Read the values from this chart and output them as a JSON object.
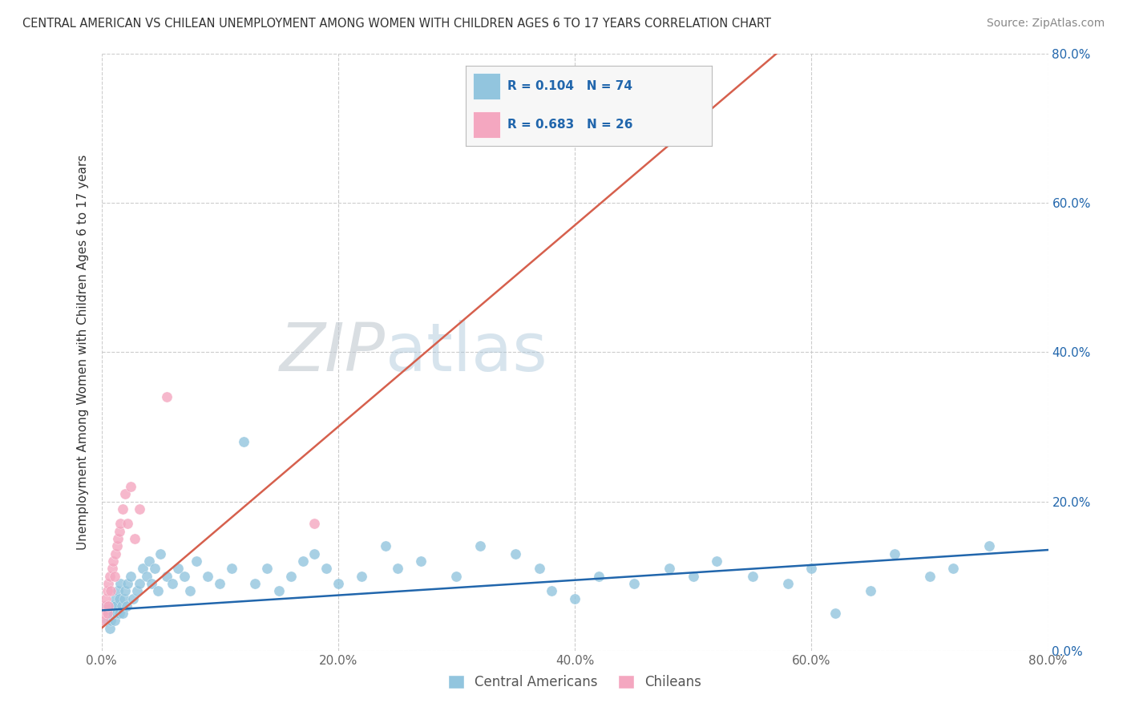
{
  "title": "CENTRAL AMERICAN VS CHILEAN UNEMPLOYMENT AMONG WOMEN WITH CHILDREN AGES 6 TO 17 YEARS CORRELATION CHART",
  "source": "Source: ZipAtlas.com",
  "ylabel": "Unemployment Among Women with Children Ages 6 to 17 years",
  "xlim": [
    0.0,
    0.8
  ],
  "ylim": [
    0.0,
    0.8
  ],
  "xticks": [
    0.0,
    0.2,
    0.4,
    0.6,
    0.8
  ],
  "yticks": [
    0.0,
    0.2,
    0.4,
    0.6,
    0.8
  ],
  "xticklabels": [
    "0.0%",
    "20.0%",
    "40.0%",
    "60.0%",
    "80.0%"
  ],
  "yticklabels": [
    "0.0%",
    "20.0%",
    "40.0%",
    "60.0%",
    "80.0%"
  ],
  "background_color": "#ffffff",
  "grid_color": "#cccccc",
  "blue_color": "#92c5de",
  "pink_color": "#f4a7c0",
  "blue_line_color": "#2166ac",
  "pink_line_color": "#d6604d",
  "label_color": "#2166ac",
  "ca_x": [
    0.003,
    0.005,
    0.006,
    0.007,
    0.008,
    0.009,
    0.01,
    0.011,
    0.012,
    0.012,
    0.013,
    0.014,
    0.015,
    0.015,
    0.016,
    0.017,
    0.018,
    0.019,
    0.02,
    0.021,
    0.022,
    0.025,
    0.027,
    0.03,
    0.032,
    0.035,
    0.038,
    0.04,
    0.042,
    0.045,
    0.048,
    0.05,
    0.055,
    0.06,
    0.065,
    0.07,
    0.075,
    0.08,
    0.09,
    0.1,
    0.11,
    0.12,
    0.13,
    0.14,
    0.15,
    0.16,
    0.17,
    0.18,
    0.19,
    0.2,
    0.22,
    0.24,
    0.25,
    0.27,
    0.3,
    0.32,
    0.35,
    0.37,
    0.38,
    0.4,
    0.42,
    0.45,
    0.48,
    0.5,
    0.52,
    0.55,
    0.58,
    0.6,
    0.62,
    0.65,
    0.67,
    0.7,
    0.72,
    0.75
  ],
  "ca_y": [
    0.06,
    0.04,
    0.05,
    0.03,
    0.04,
    0.06,
    0.05,
    0.04,
    0.07,
    0.06,
    0.05,
    0.08,
    0.07,
    0.05,
    0.09,
    0.06,
    0.05,
    0.07,
    0.08,
    0.06,
    0.09,
    0.1,
    0.07,
    0.08,
    0.09,
    0.11,
    0.1,
    0.12,
    0.09,
    0.11,
    0.08,
    0.13,
    0.1,
    0.09,
    0.11,
    0.1,
    0.08,
    0.12,
    0.1,
    0.09,
    0.11,
    0.28,
    0.09,
    0.11,
    0.08,
    0.1,
    0.12,
    0.13,
    0.11,
    0.09,
    0.1,
    0.14,
    0.11,
    0.12,
    0.1,
    0.14,
    0.13,
    0.11,
    0.08,
    0.07,
    0.1,
    0.09,
    0.11,
    0.1,
    0.12,
    0.1,
    0.09,
    0.11,
    0.05,
    0.08,
    0.13,
    0.1,
    0.11,
    0.14
  ],
  "ch_x": [
    0.001,
    0.002,
    0.003,
    0.004,
    0.005,
    0.005,
    0.006,
    0.006,
    0.007,
    0.008,
    0.009,
    0.01,
    0.011,
    0.012,
    0.013,
    0.014,
    0.015,
    0.016,
    0.018,
    0.02,
    0.022,
    0.025,
    0.028,
    0.032,
    0.055,
    0.18
  ],
  "ch_y": [
    0.05,
    0.04,
    0.06,
    0.07,
    0.05,
    0.08,
    0.06,
    0.09,
    0.1,
    0.08,
    0.11,
    0.12,
    0.1,
    0.13,
    0.14,
    0.15,
    0.16,
    0.17,
    0.19,
    0.21,
    0.17,
    0.22,
    0.15,
    0.19,
    0.34,
    0.17
  ],
  "blue_trend_x": [
    0.0,
    0.8
  ],
  "blue_trend_y": [
    0.054,
    0.135
  ],
  "pink_trend_x_start": 0.0,
  "pink_trend_y_start": 0.03,
  "pink_trend_slope": 1.35,
  "legend_items": [
    {
      "color": "#92c5de",
      "text_r": "R = 0.104",
      "text_n": "N = 74"
    },
    {
      "color": "#f4a7c0",
      "text_r": "R = 0.683",
      "text_n": "N = 26"
    }
  ],
  "legend_label_color": "#2166ac",
  "bottom_legend": [
    {
      "color": "#92c5de",
      "label": "Central Americans"
    },
    {
      "color": "#f4a7c0",
      "label": "Chileans"
    }
  ]
}
